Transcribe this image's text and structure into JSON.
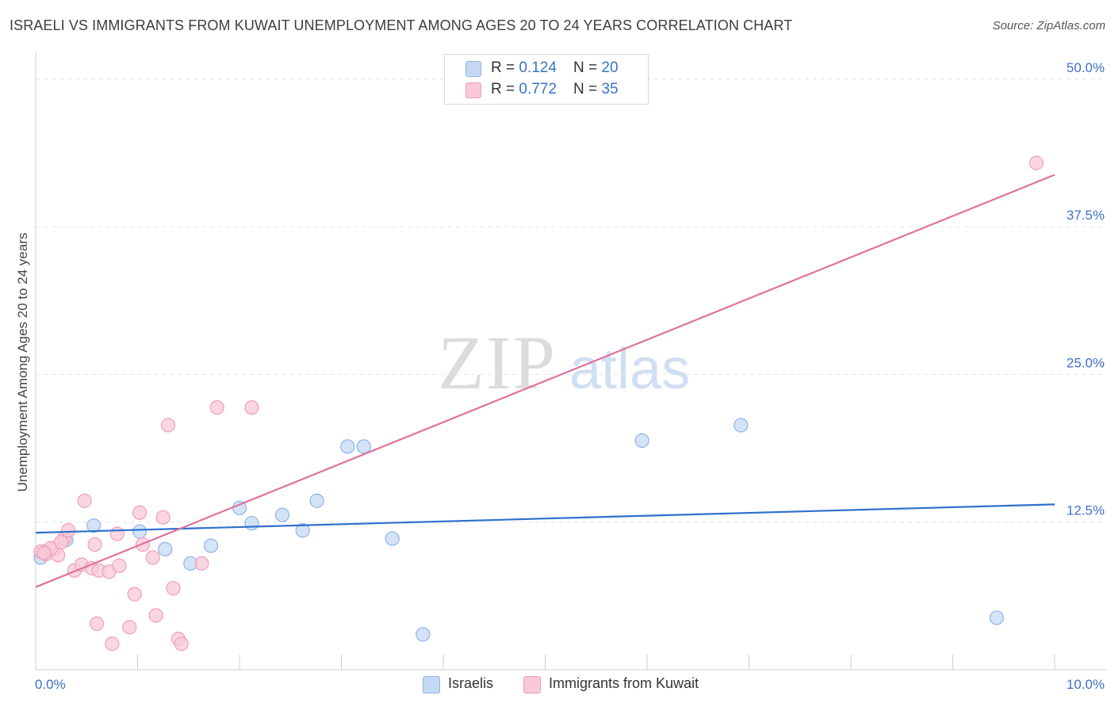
{
  "header": {
    "title": "ISRAELI VS IMMIGRANTS FROM KUWAIT UNEMPLOYMENT AMONG AGES 20 TO 24 YEARS CORRELATION CHART",
    "source": "Source: ZipAtlas.com"
  },
  "legend": {
    "rows": [
      {
        "r_label": "R = ",
        "r_value": "0.124",
        "n_label": "N = ",
        "n_value": "20"
      },
      {
        "r_label": "R = ",
        "r_value": "0.772",
        "n_label": "N = ",
        "n_value": "35"
      }
    ],
    "bottom": [
      {
        "label": "Israelis"
      },
      {
        "label": "Immigrants from Kuwait"
      }
    ]
  },
  "watermark": {
    "zip": "ZIP",
    "atlas": "atlas"
  },
  "colors": {
    "israelis_fill": "#c5d9f4",
    "israelis_stroke": "#8fb3e6",
    "israelis_line": "#2f6fcd",
    "kuwait_fill": "#f8c8d8",
    "kuwait_stroke": "#ee9fba",
    "kuwait_line": "#e0729a",
    "tick_label": "#3f6fc6"
  },
  "chart_data": {
    "type": "scatter",
    "title": "ISRAELI VS IMMIGRANTS FROM KUWAIT UNEMPLOYMENT AMONG AGES 20 TO 24 YEARS CORRELATION CHART",
    "xlabel": "",
    "ylabel": "Unemployment Among Ages 20 to 24 years",
    "xlim": [
      0,
      10
    ],
    "ylim": [
      0,
      52
    ],
    "x_tick_labels": [
      {
        "value": 0,
        "label": "0.0%"
      },
      {
        "value": 10,
        "label": "10.0%"
      }
    ],
    "x_minor_ticks": [
      0,
      1,
      2,
      3,
      4,
      5,
      6,
      7,
      8,
      9,
      10
    ],
    "y_tick_labels": [
      {
        "value": 12.5,
        "label": "12.5%"
      },
      {
        "value": 25.0,
        "label": "25.0%"
      },
      {
        "value": 37.5,
        "label": "37.5%"
      },
      {
        "value": 50.0,
        "label": "50.0%"
      }
    ],
    "grid": true,
    "series": [
      {
        "name": "Israelis",
        "color": "#8fb3e6",
        "points": [
          [
            0.05,
            9.5
          ],
          [
            0.3,
            11.0
          ],
          [
            0.57,
            12.2
          ],
          [
            1.02,
            11.7
          ],
          [
            1.27,
            10.2
          ],
          [
            1.52,
            9.0
          ],
          [
            1.72,
            10.5
          ],
          [
            2.0,
            13.7
          ],
          [
            2.12,
            12.4
          ],
          [
            2.42,
            13.1
          ],
          [
            2.62,
            11.8
          ],
          [
            2.76,
            14.3
          ],
          [
            3.06,
            18.9
          ],
          [
            3.22,
            18.9
          ],
          [
            3.5,
            11.1
          ],
          [
            3.8,
            3.0
          ],
          [
            5.95,
            19.4
          ],
          [
            6.92,
            20.7
          ],
          [
            9.43,
            4.4
          ],
          [
            0.1,
            10.0
          ]
        ],
        "trend": {
          "x": [
            0,
            10
          ],
          "y": [
            11.6,
            14.0
          ]
        }
      },
      {
        "name": "Immigrants from Kuwait",
        "color": "#ee9fba",
        "points": [
          [
            0.05,
            10.0
          ],
          [
            0.1,
            9.8
          ],
          [
            0.18,
            10.2
          ],
          [
            0.22,
            9.7
          ],
          [
            0.28,
            11.1
          ],
          [
            0.32,
            11.8
          ],
          [
            0.38,
            8.4
          ],
          [
            0.45,
            8.9
          ],
          [
            0.48,
            14.3
          ],
          [
            0.55,
            8.6
          ],
          [
            0.58,
            10.6
          ],
          [
            0.6,
            3.9
          ],
          [
            0.62,
            8.4
          ],
          [
            0.72,
            8.3
          ],
          [
            0.75,
            2.2
          ],
          [
            0.8,
            11.5
          ],
          [
            0.82,
            8.8
          ],
          [
            0.92,
            3.6
          ],
          [
            0.97,
            6.4
          ],
          [
            1.02,
            13.3
          ],
          [
            1.05,
            10.6
          ],
          [
            1.15,
            9.5
          ],
          [
            1.18,
            4.6
          ],
          [
            1.25,
            12.9
          ],
          [
            1.3,
            20.7
          ],
          [
            1.35,
            6.9
          ],
          [
            1.4,
            2.6
          ],
          [
            1.43,
            2.2
          ],
          [
            1.63,
            9.0
          ],
          [
            1.78,
            22.2
          ],
          [
            2.12,
            22.2
          ],
          [
            9.82,
            42.9
          ],
          [
            0.15,
            10.3
          ],
          [
            0.08,
            9.9
          ],
          [
            0.25,
            10.8
          ]
        ],
        "trend": {
          "x": [
            0,
            10
          ],
          "y": [
            7.0,
            41.9
          ]
        }
      }
    ]
  }
}
